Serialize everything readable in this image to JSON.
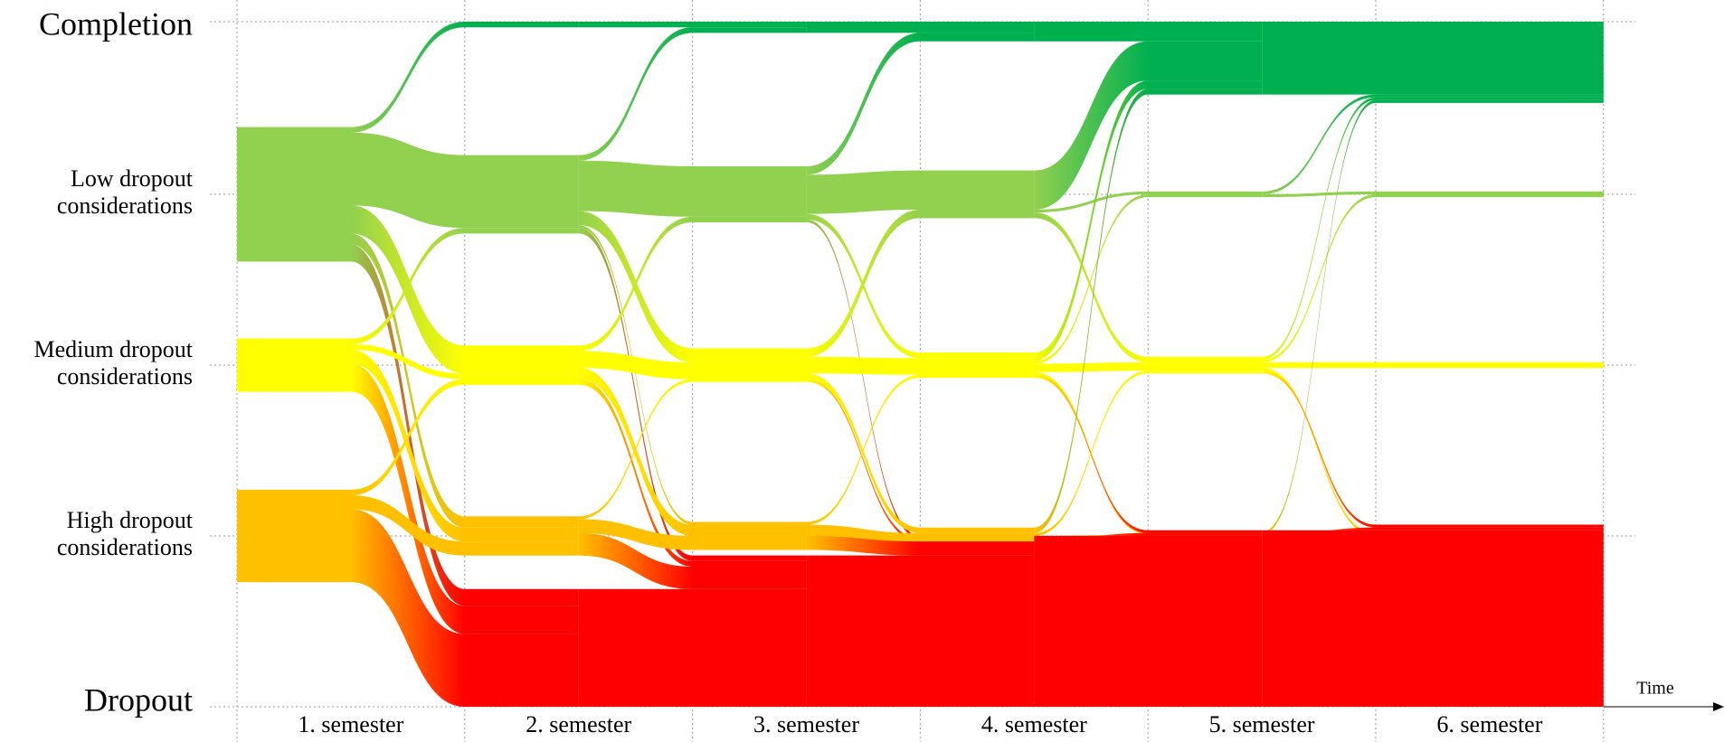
{
  "chart_data": {
    "type": "alluvial",
    "states": [
      {
        "label": [
          "Completion"
        ],
        "color": "#00b050"
      },
      {
        "label": [
          "Low dropout",
          "considerations"
        ],
        "color": "#92d050"
      },
      {
        "label": [
          "Medium dropout",
          "considerations"
        ],
        "color": "#ffff00"
      },
      {
        "label": [
          "High dropout",
          "considerations"
        ],
        "color": "#ffc000"
      },
      {
        "label": [
          "Dropout"
        ],
        "color": "#ff0000"
      }
    ],
    "categories": [
      "1. semester",
      "2. semester",
      "3. semester",
      "4. semester",
      "5. semester",
      "6. semester"
    ],
    "initial": [
      0,
      48,
      19,
      33,
      0
    ],
    "transitions": [
      [
        [
          0,
          0,
          0,
          0,
          0
        ],
        [
          2,
          26,
          10,
          4,
          6
        ],
        [
          0,
          2,
          2,
          5,
          10
        ],
        [
          0,
          0,
          2,
          5,
          26
        ],
        [
          0,
          0,
          0,
          0,
          0
        ]
      ],
      [
        [
          2,
          0,
          0,
          0,
          0
        ],
        [
          2,
          18,
          5,
          1,
          2
        ],
        [
          0,
          2,
          6,
          4,
          2
        ],
        [
          0,
          0,
          1,
          5,
          8
        ],
        [
          0,
          0,
          0,
          0,
          42
        ]
      ],
      [
        [
          4,
          0,
          0,
          0,
          0
        ],
        [
          3,
          14,
          2,
          0,
          1
        ],
        [
          0,
          3,
          6,
          2,
          1
        ],
        [
          0,
          0,
          1,
          4,
          5
        ],
        [
          0,
          0,
          0,
          0,
          54
        ]
      ],
      [
        [
          7,
          0,
          0,
          0,
          0
        ],
        [
          14,
          1,
          2,
          0,
          0
        ],
        [
          3,
          1,
          3,
          1,
          1
        ],
        [
          2,
          0,
          1,
          2,
          1
        ],
        [
          0,
          0,
          0,
          0,
          61
        ]
      ],
      [
        [
          26,
          0,
          0,
          0,
          0
        ],
        [
          1,
          1,
          0,
          0,
          0
        ],
        [
          1,
          1,
          2,
          1,
          1
        ],
        [
          1,
          0,
          0,
          1,
          1
        ],
        [
          0,
          0,
          0,
          0,
          63
        ]
      ]
    ],
    "x_label": "Time"
  }
}
